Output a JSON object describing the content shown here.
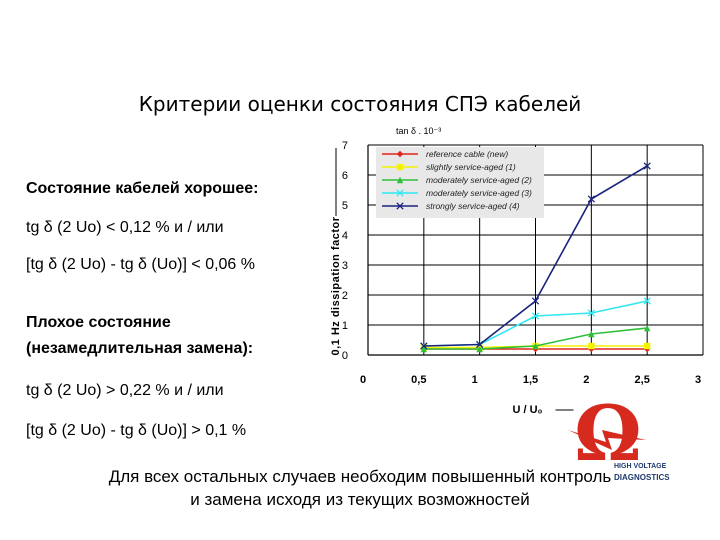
{
  "slide": {
    "title": "Критерии оценки состояния СПЭ кабелей",
    "good_heading": "Состояние кабелей хорошее:",
    "good_line1": "tg δ (2 Uo) < 0,12 %  и / или",
    "good_line2": "[tg δ (2 Uo) - tg δ (Uo)] < 0,06 %",
    "bad_heading_1": "Плохое состояние",
    "bad_heading_2": "(незамедлительная замена):",
    "bad_line1": "tg δ (2 Uo) > 0,22 %  и / или",
    "bad_line2": "[tg δ (2 Uo) - tg δ (Uo)] > 0,1 %",
    "footer_line1": "Для всех остальных случаев необходим повышенный контроль",
    "footer_line2": "и замена исходя из текущих возможностей"
  },
  "logo": {
    "symbol": "Ω",
    "text_line1": "HIGH VOLTAGE",
    "text_line2": "DIAGNOSTICS",
    "color": "#d62a1e",
    "text_color": "#1f3a6e"
  },
  "chart_data": {
    "type": "line",
    "ylabel": "0,1 Hz dissipation factor",
    "yunit": "tan δ . 10⁻³",
    "xlabel": "U / U₀",
    "xlim": [
      0,
      3
    ],
    "ylim": [
      0,
      7
    ],
    "x_ticks": [
      "0",
      "0,5",
      "1",
      "1,5",
      "2",
      "2,5",
      "3"
    ],
    "y_ticks": [
      "0",
      "1",
      "2",
      "3",
      "4",
      "5",
      "6",
      "7"
    ],
    "grid": true,
    "legend_position": "top-left",
    "x": [
      0.5,
      1.0,
      1.5,
      2.0,
      2.5
    ],
    "series": [
      {
        "name": "reference cable (new)",
        "color": "#e0241b",
        "marker": "diamond",
        "values": [
          0.2,
          0.2,
          0.2,
          0.2,
          0.2
        ]
      },
      {
        "name": "slightly service-aged (1)",
        "color": "#f3f300",
        "marker": "square",
        "values": [
          0.25,
          0.25,
          0.3,
          0.3,
          0.3
        ]
      },
      {
        "name": "moderately service-aged (2)",
        "color": "#2fbf3a",
        "marker": "triangle",
        "values": [
          0.2,
          0.2,
          0.3,
          0.7,
          0.9
        ]
      },
      {
        "name": "moderately service-aged (3)",
        "color": "#2ee8f0",
        "marker": "x",
        "values": [
          0.3,
          0.35,
          1.3,
          1.4,
          1.8
        ]
      },
      {
        "name": "strongly service-aged (4)",
        "color": "#1a237e",
        "marker": "x",
        "values": [
          0.3,
          0.35,
          1.8,
          5.2,
          6.3
        ]
      }
    ]
  }
}
